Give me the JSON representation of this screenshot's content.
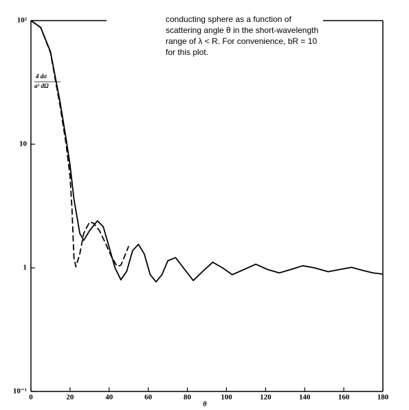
{
  "chart_data": {
    "type": "line",
    "annotation": [
      "conducting sphere as a function of",
      "scattering angle θ in the short-wavelength",
      "range of λ < R. For convenience, bR = 10",
      "for this plot."
    ],
    "ylabel": [
      "4   dσ",
      "a²  dΩ"
    ],
    "xlabel": "θ",
    "xlim": [
      0,
      180
    ],
    "xticks": [
      0,
      20,
      40,
      60,
      80,
      100,
      120,
      140,
      160,
      180
    ],
    "ylim": [
      0.1,
      100
    ],
    "yticks": [
      {
        "value": 0.1,
        "label": "10⁻¹"
      },
      1,
      10,
      {
        "value": 100,
        "label": "10²"
      }
    ],
    "log_y": true,
    "series": [
      {
        "color": "#000000",
        "dash": false,
        "x": [
          0,
          5,
          10,
          15,
          18,
          20,
          22,
          25,
          27,
          30,
          34,
          37,
          40,
          43,
          46,
          49,
          52,
          55,
          58,
          61,
          64,
          67,
          70,
          74,
          78,
          83,
          88,
          93,
          98,
          103,
          109,
          115,
          121,
          127,
          133,
          139,
          145,
          152,
          158,
          164,
          170,
          175,
          180
        ],
        "values": [
          100,
          88,
          56,
          21.5,
          11,
          6.8,
          3.6,
          1.9,
          1.67,
          2.0,
          2.4,
          2.15,
          1.47,
          1.0,
          0.8,
          0.94,
          1.38,
          1.55,
          1.29,
          0.88,
          0.77,
          0.88,
          1.14,
          1.21,
          1.0,
          0.79,
          0.94,
          1.11,
          1.0,
          0.88,
          0.97,
          1.07,
          0.97,
          0.91,
          0.97,
          1.04,
          1.0,
          0.93,
          0.97,
          1.01,
          0.95,
          0.91,
          0.89
        ]
      },
      {
        "color": "#000000",
        "dash": true,
        "x": [
          0,
          5,
          10,
          15,
          18,
          20,
          21,
          22,
          23,
          25,
          27,
          30,
          32,
          35,
          38,
          41,
          44,
          46,
          48,
          50
        ],
        "values": [
          100,
          88,
          55,
          20,
          10,
          5.5,
          3.0,
          1.2,
          1.02,
          1.3,
          1.9,
          2.35,
          2.3,
          2.0,
          1.6,
          1.25,
          1.03,
          1.05,
          1.25,
          1.5
        ]
      }
    ]
  }
}
